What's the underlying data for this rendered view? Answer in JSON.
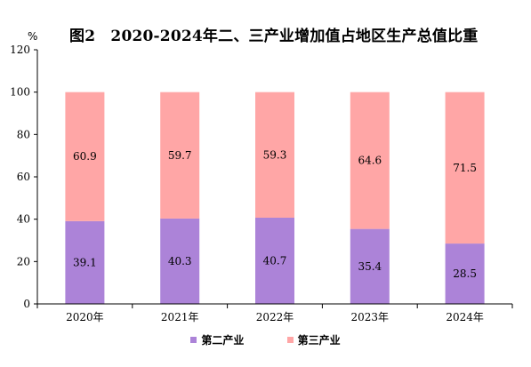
{
  "chart_data": {
    "type": "bar",
    "stacked": true,
    "title": "图2　2020-2024年二、三产业增加值占地区生产总值比重",
    "unit": "%",
    "categories": [
      "2020年",
      "2021年",
      "2022年",
      "2023年",
      "2024年"
    ],
    "series": [
      {
        "name": "第二产业",
        "values": [
          39.1,
          40.3,
          40.7,
          35.4,
          28.5
        ],
        "color": "#ac83d8"
      },
      {
        "name": "第三产业",
        "values": [
          60.9,
          59.7,
          59.3,
          64.6,
          71.5
        ],
        "color": "#ffa6a6"
      }
    ],
    "ylim": [
      0,
      120
    ],
    "yticks": [
      0,
      20,
      40,
      60,
      80,
      100,
      120
    ],
    "grid": false,
    "legend": "bottom"
  }
}
